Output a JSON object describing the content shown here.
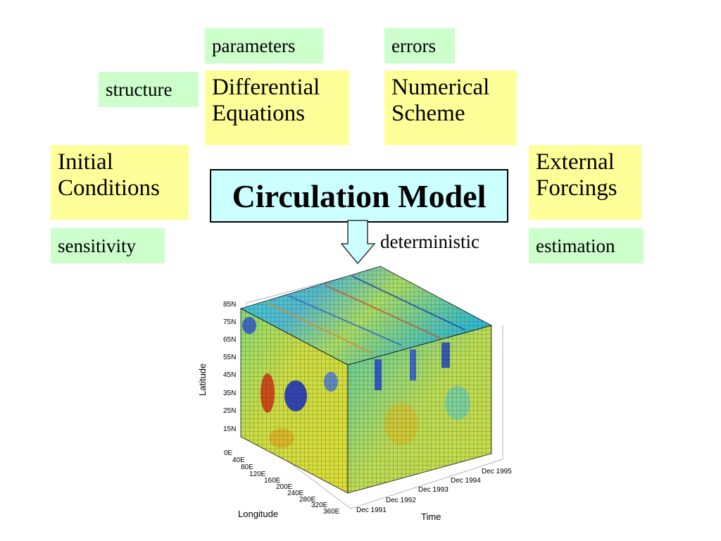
{
  "labels": {
    "parameters": "parameters",
    "errors": "errors",
    "structure": "structure",
    "differential_equations": [
      "Differential",
      "Equations"
    ],
    "numerical_scheme": [
      "Numerical",
      "Scheme"
    ],
    "initial_conditions": [
      "Initial",
      "Conditions"
    ],
    "external_forcings": [
      "External",
      "Forcings"
    ],
    "circulation_model": "Circulation Model",
    "sensitivity": "sensitivity",
    "estimation": "estimation",
    "deterministic": "deterministic"
  },
  "cube_plot": {
    "latitude_ticks": [
      "85N",
      "75N",
      "65N",
      "55N",
      "45N",
      "35N",
      "25N",
      "15N"
    ],
    "longitude_ticks": [
      "0E",
      "40E",
      "80E",
      "120E",
      "160E",
      "200E",
      "240E",
      "280E",
      "320E",
      "360E"
    ],
    "time_ticks": [
      "Dec 1991",
      "Dec 1992",
      "Dec 1993",
      "Dec 1994",
      "Dec 1995"
    ],
    "latitude_label": "Latitude",
    "longitude_label": "Longitude",
    "time_label": "Time"
  },
  "colors": {
    "green_box": "#ccffcc",
    "yellow_box": "#ffff99",
    "main_box": "#ccffff"
  }
}
